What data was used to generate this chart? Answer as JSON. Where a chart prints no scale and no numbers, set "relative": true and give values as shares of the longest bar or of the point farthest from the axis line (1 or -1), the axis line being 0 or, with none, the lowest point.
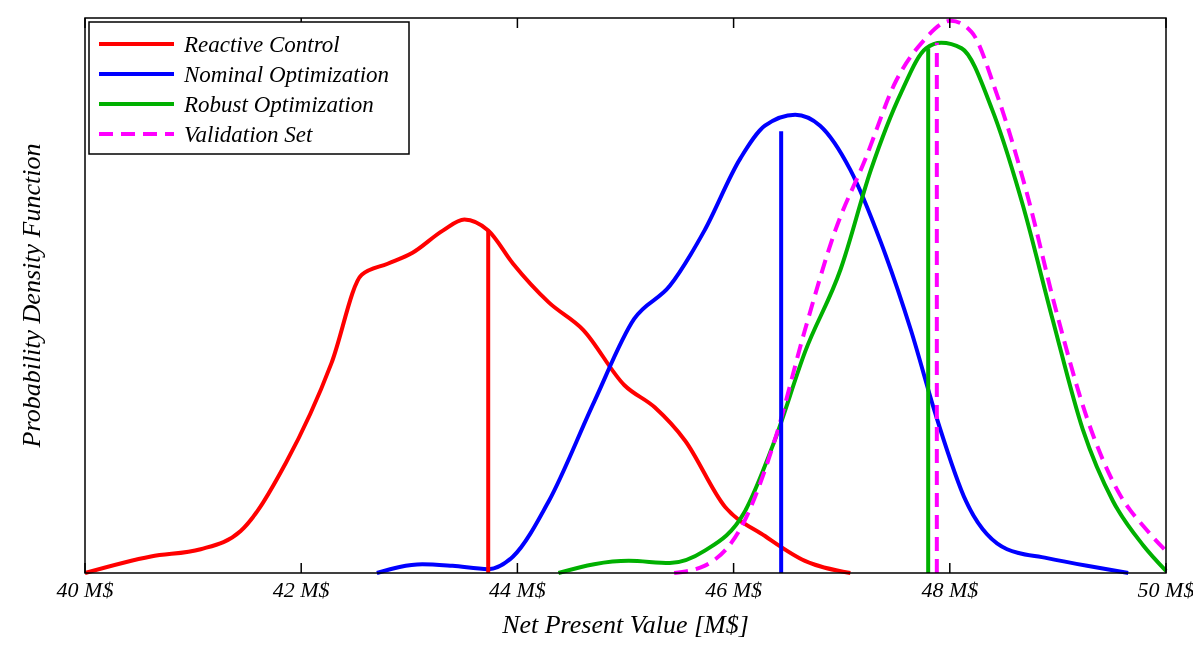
{
  "chart_data": {
    "type": "line",
    "relative": true,
    "xlabel": "Net Present Value [M$]",
    "ylabel": "Probability Density Function",
    "xlim": [
      40,
      50
    ],
    "xticks": [
      {
        "value": 40,
        "label": "40 M$"
      },
      {
        "value": 42,
        "label": "42 M$"
      },
      {
        "value": 44,
        "label": "44 M$"
      },
      {
        "value": 46,
        "label": "46 M$"
      },
      {
        "value": 48,
        "label": "48 M$"
      },
      {
        "value": 50,
        "label": "50 M$"
      }
    ],
    "legend": "top left",
    "grid": false,
    "series": [
      {
        "name": "Reactive Control",
        "color": "#ff0000",
        "line_style": "solid",
        "x": [
          40,
          40.61,
          41.07,
          41.44,
          41.86,
          42.28,
          42.56,
          42.8,
          43.03,
          43.31,
          43.51,
          43.73,
          43.96,
          44.29,
          44.61,
          44.99,
          45.27,
          45.55,
          45.92,
          46.29,
          46.66,
          47.08
        ],
        "values": [
          0,
          0.03,
          0.043,
          0.076,
          0.2,
          0.38,
          0.54,
          0.56,
          0.58,
          0.62,
          0.64,
          0.62,
          0.56,
          0.49,
          0.44,
          0.34,
          0.3,
          0.24,
          0.12,
          0.067,
          0.022,
          0
        ]
      },
      {
        "name": "Nominal Optimization",
        "color": "#0000ff",
        "line_style": "solid",
        "x": [
          42.7,
          43.12,
          43.4,
          43.73,
          43.96,
          44.29,
          44.71,
          45.08,
          45.41,
          45.73,
          46.06,
          46.29,
          46.57,
          46.8,
          47.08,
          47.36,
          47.64,
          47.88,
          48.15,
          48.53,
          48.9,
          49.27,
          49.65
        ],
        "values": [
          0,
          0.016,
          0.013,
          0.007,
          0.03,
          0.13,
          0.31,
          0.46,
          0.52,
          0.62,
          0.75,
          0.81,
          0.83,
          0.81,
          0.73,
          0.6,
          0.44,
          0.28,
          0.13,
          0.043,
          0.027,
          0.013,
          0
        ]
      },
      {
        "name": "Robust Optimization",
        "color": "#00b000",
        "line_style": "solid",
        "x": [
          44.38,
          44.71,
          45.03,
          45.41,
          45.73,
          46.1,
          46.38,
          46.66,
          46.99,
          47.27,
          47.55,
          47.78,
          47.92,
          48.11,
          48.39,
          48.67,
          48.95,
          49.23,
          49.51,
          49.79,
          50
        ],
        "values": [
          0,
          0.016,
          0.022,
          0.018,
          0.04,
          0.11,
          0.24,
          0.4,
          0.55,
          0.73,
          0.87,
          0.95,
          0.96,
          0.95,
          0.84,
          0.67,
          0.46,
          0.26,
          0.13,
          0.05,
          0.004
        ]
      },
      {
        "name": "Validation Set",
        "color": "#ff00ff",
        "line_style": "dashed",
        "x": [
          45.45,
          45.73,
          46.1,
          46.38,
          46.66,
          46.94,
          47.22,
          47.5,
          47.74,
          48.01,
          48.2,
          48.43,
          48.71,
          48.99,
          49.27,
          49.55,
          49.83,
          50
        ],
        "values": [
          0,
          0.013,
          0.094,
          0.24,
          0.44,
          0.62,
          0.75,
          0.89,
          0.96,
          1,
          0.98,
          0.87,
          0.69,
          0.47,
          0.28,
          0.15,
          0.076,
          0.04
        ]
      },
      {
        "color": "#ff0000",
        "line_style": "solid",
        "x": [
          43.73,
          43.73
        ],
        "values": [
          0,
          0.62
        ]
      },
      {
        "color": "#0000ff",
        "line_style": "solid",
        "x": [
          46.44,
          46.44
        ],
        "values": [
          0,
          0.8
        ]
      },
      {
        "color": "#00b000",
        "line_style": "solid",
        "x": [
          47.8,
          47.8
        ],
        "values": [
          0,
          0.95
        ]
      },
      {
        "color": "#ff00ff",
        "line_style": "dashed",
        "x": [
          47.88,
          47.88
        ],
        "values": [
          0,
          0.96
        ]
      }
    ]
  }
}
